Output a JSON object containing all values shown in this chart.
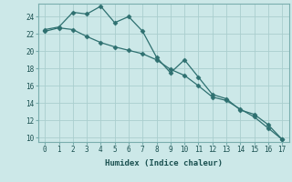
{
  "xlabel": "Humidex (Indice chaleur)",
  "x": [
    0,
    1,
    2,
    3,
    4,
    5,
    6,
    7,
    8,
    9,
    10,
    11,
    12,
    13,
    14,
    15,
    16,
    17
  ],
  "line1": [
    22.5,
    22.8,
    24.5,
    24.3,
    25.2,
    23.3,
    24.0,
    22.3,
    19.3,
    17.5,
    19.0,
    17.0,
    15.0,
    14.5,
    13.2,
    12.7,
    11.5,
    9.8
  ],
  "line2": [
    22.3,
    22.7,
    22.5,
    21.7,
    21.0,
    20.5,
    20.1,
    19.7,
    19.0,
    17.9,
    17.2,
    16.0,
    14.7,
    14.3,
    13.3,
    12.4,
    11.1,
    9.8
  ],
  "line_color": "#2e7070",
  "bg_color": "#cce8e8",
  "grid_color_major": "#aacece",
  "grid_color_minor": "#bbdada",
  "ylim": [
    9.5,
    25.5
  ],
  "yticks": [
    10,
    12,
    14,
    16,
    18,
    20,
    22,
    24
  ],
  "xticks": [
    0,
    1,
    2,
    3,
    4,
    5,
    6,
    7,
    8,
    9,
    10,
    11,
    12,
    13,
    14,
    15,
    16,
    17
  ],
  "tick_fontsize": 5.5,
  "xlabel_fontsize": 6.5
}
